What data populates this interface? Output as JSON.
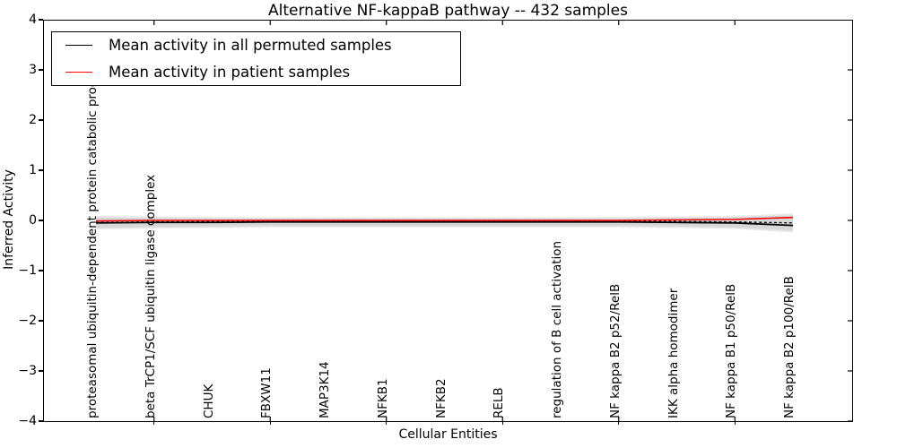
{
  "title": "Alternative NF-kappaB pathway -- 432 samples",
  "axes": {
    "xlabel": "Cellular Entities",
    "ylabel": "Inferred Activity"
  },
  "legend": {
    "items": [
      {
        "label": "Mean activity in all permuted samples",
        "color": "#000000"
      },
      {
        "label": "Mean activity in patient samples",
        "color": "#ff0000"
      }
    ]
  },
  "chart_data": {
    "type": "line",
    "title": "Alternative NF-kappaB pathway -- 432 samples",
    "xlabel": "Cellular Entities",
    "ylabel": "Inferred Activity",
    "ylim": [
      -4,
      4
    ],
    "yticks": [
      -4,
      -3,
      -2,
      -1,
      0,
      1,
      2,
      3,
      4
    ],
    "grid": false,
    "legend_position": "upper left",
    "categories": [
      "proteasomal ubiquitin-dependent protein catabolic process",
      "beta TrCP1/SCF ubiquitin ligase complex",
      "CHUK",
      "FBXW11",
      "MAP3K14",
      "NFKB1",
      "NFKB2",
      "RELB",
      "regulation of B cell activation",
      "NF kappa B2 p52/RelB",
      "IKK alpha homodimer",
      "NF kappa B1 p50/RelB",
      "NF kappa B2 p100/RelB"
    ],
    "xtick_indices": [
      1,
      3,
      5,
      7,
      9,
      11
    ],
    "series": [
      {
        "name": "Mean activity in all permuted samples",
        "color": "#000000",
        "style": "solid",
        "width": 1.8,
        "values": [
          -0.05,
          -0.04,
          -0.04,
          -0.03,
          -0.03,
          -0.03,
          -0.03,
          -0.03,
          -0.03,
          -0.03,
          -0.04,
          -0.05,
          -0.1
        ]
      },
      {
        "name": "permuted samples dashed trace",
        "color": "#000000",
        "style": "dashed",
        "width": 1.3,
        "values": [
          -0.04,
          -0.03,
          -0.02,
          -0.02,
          -0.02,
          -0.02,
          -0.02,
          -0.02,
          -0.02,
          -0.02,
          -0.02,
          -0.03,
          -0.05
        ]
      },
      {
        "name": "Mean activity in patient samples",
        "color": "#ff0000",
        "style": "solid",
        "width": 1.6,
        "values": [
          -0.01,
          0,
          0,
          0,
          0,
          0,
          0,
          0,
          0,
          0,
          0.01,
          0.02,
          0.06
        ]
      }
    ],
    "bands": [
      {
        "name": "permuted activity outer band",
        "color": "#e9e9e9",
        "upper": [
          0.09,
          0.08,
          0.07,
          0.06,
          0.06,
          0.06,
          0.06,
          0.06,
          0.06,
          0.07,
          0.08,
          0.09,
          0.14
        ],
        "lower": [
          -0.18,
          -0.16,
          -0.15,
          -0.14,
          -0.14,
          -0.14,
          -0.14,
          -0.14,
          -0.14,
          -0.14,
          -0.15,
          -0.17,
          -0.24
        ]
      },
      {
        "name": "permuted activity inner band",
        "color": "#d7d7d7",
        "upper": [
          0.06,
          0.05,
          0.04,
          0.04,
          0.04,
          0.04,
          0.04,
          0.04,
          0.04,
          0.04,
          0.05,
          0.06,
          0.1
        ],
        "lower": [
          -0.15,
          -0.13,
          -0.12,
          -0.11,
          -0.11,
          -0.11,
          -0.11,
          -0.11,
          -0.11,
          -0.11,
          -0.12,
          -0.14,
          -0.2
        ]
      }
    ]
  }
}
